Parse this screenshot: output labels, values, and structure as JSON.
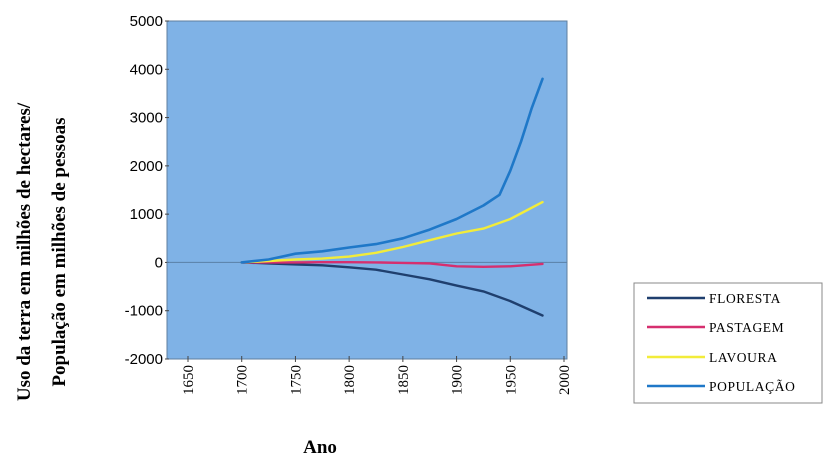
{
  "chart_data": {
    "type": "line",
    "title": "",
    "xlabel": "Ano",
    "ylabel_line1": "Uso da terra em milhões de hectares/",
    "ylabel_line2": "População em milhões de pessoas",
    "xlim": [
      1650,
      2000
    ],
    "ylim": [
      -2000,
      5000
    ],
    "x_ticks": [
      "1650",
      "1700",
      "1750",
      "1800",
      "1850",
      "1900",
      "1950",
      "2000"
    ],
    "y_ticks": [
      "5000",
      "4000",
      "3000",
      "2000",
      "1000",
      "0",
      "-1000",
      "-2000"
    ],
    "grid": false,
    "legend_position": "right",
    "plot_background": "#7fb2e6",
    "series": [
      {
        "name": "FLORESTA",
        "color": "#1f3f6e",
        "x": [
          1700,
          1725,
          1750,
          1775,
          1800,
          1825,
          1850,
          1875,
          1900,
          1925,
          1950,
          1980
        ],
        "y": [
          0,
          -20,
          -40,
          -60,
          -100,
          -150,
          -250,
          -350,
          -480,
          -600,
          -800,
          -1100
        ]
      },
      {
        "name": "PASTAGEM",
        "color": "#d62f6f",
        "x": [
          1700,
          1725,
          1750,
          1775,
          1800,
          1825,
          1850,
          1875,
          1900,
          1925,
          1950,
          1980
        ],
        "y": [
          0,
          0,
          0,
          5,
          5,
          0,
          -10,
          -20,
          -80,
          -90,
          -80,
          -30
        ]
      },
      {
        "name": "LAVOURA",
        "color": "#f2ec3a",
        "x": [
          1700,
          1725,
          1750,
          1775,
          1800,
          1825,
          1850,
          1875,
          1900,
          1925,
          1950,
          1980
        ],
        "y": [
          0,
          30,
          60,
          80,
          120,
          200,
          320,
          460,
          600,
          700,
          900,
          1250
        ]
      },
      {
        "name": "POPULAÇÃO",
        "color": "#1f78c8",
        "x": [
          1700,
          1725,
          1750,
          1775,
          1800,
          1825,
          1850,
          1875,
          1900,
          1925,
          1940,
          1950,
          1960,
          1970,
          1980
        ],
        "y": [
          0,
          60,
          180,
          230,
          310,
          380,
          500,
          680,
          900,
          1180,
          1400,
          1900,
          2500,
          3200,
          3800
        ]
      }
    ]
  }
}
